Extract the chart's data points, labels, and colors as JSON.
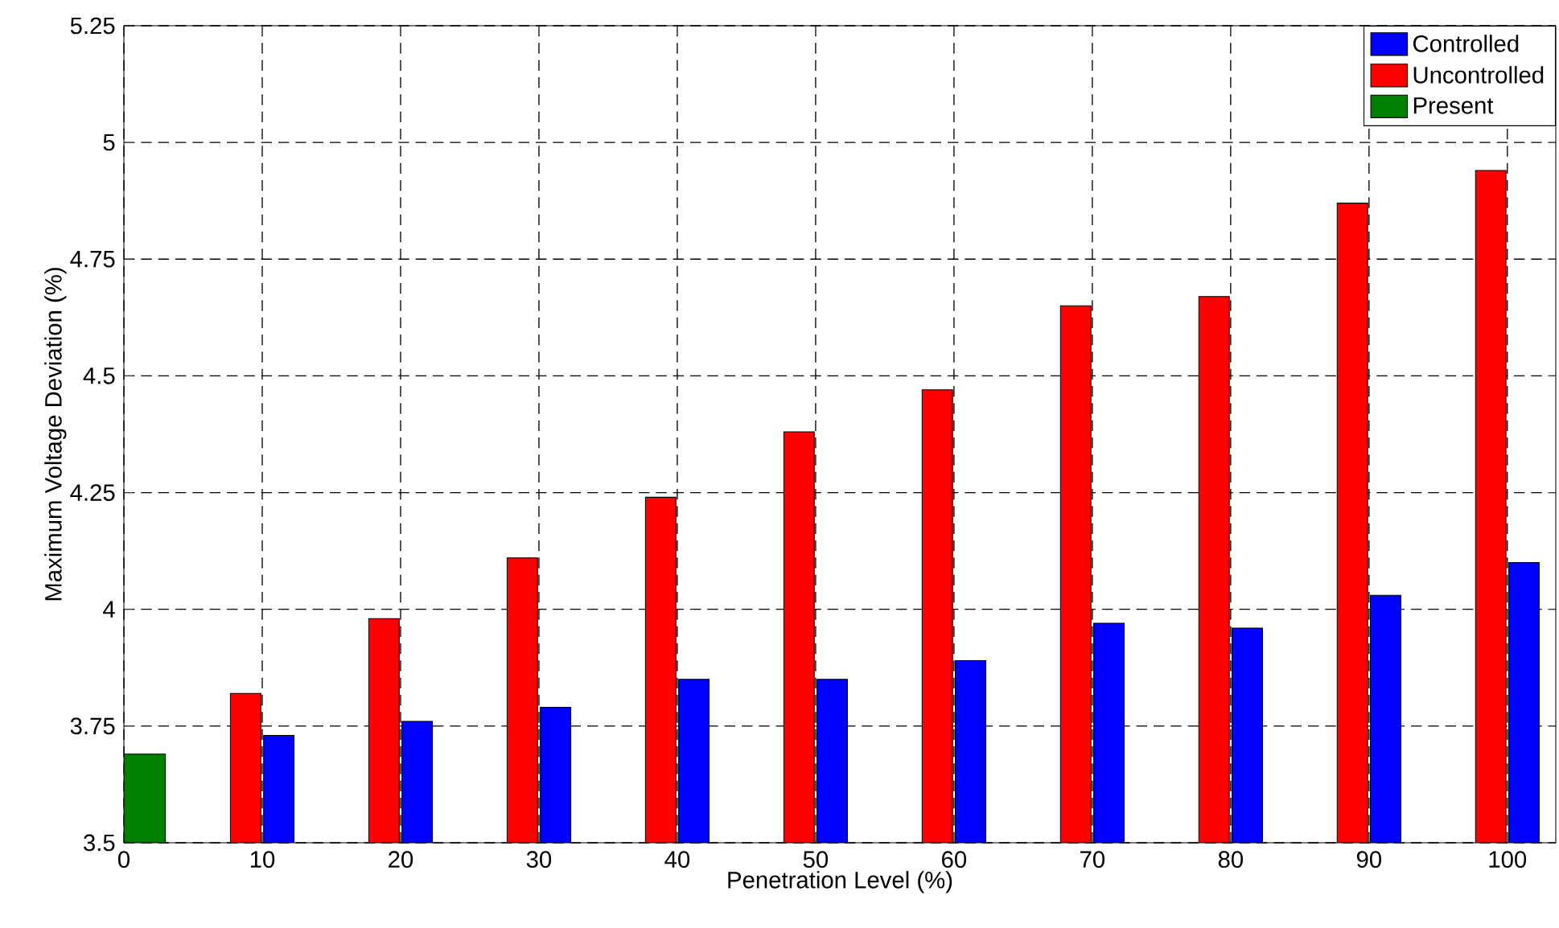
{
  "chart_data": {
    "type": "bar",
    "xlabel": "Penetration Level (%)",
    "ylabel": "Maximum Voltage Deviation (%)",
    "xlim": [
      0,
      103.5
    ],
    "xticks": [
      0,
      10,
      20,
      30,
      40,
      50,
      60,
      70,
      80,
      90,
      100
    ],
    "ylim": [
      3.5,
      5.25
    ],
    "yticks": [
      3.5,
      3.75,
      4,
      4.25,
      4.5,
      4.75,
      5,
      5.25
    ],
    "grid": true,
    "legend": "top right",
    "series": [
      {
        "name": "Controlled",
        "color": "#0000ff",
        "x": [
          10,
          20,
          30,
          40,
          50,
          60,
          70,
          80,
          90,
          100
        ],
        "values": [
          3.73,
          3.76,
          3.79,
          3.85,
          3.85,
          3.89,
          3.97,
          3.96,
          4.03,
          4.1
        ]
      },
      {
        "name": "Uncontrolled",
        "color": "#ff0000",
        "x": [
          10,
          20,
          30,
          40,
          50,
          60,
          70,
          80,
          90,
          100
        ],
        "values": [
          3.82,
          3.98,
          4.11,
          4.24,
          4.38,
          4.47,
          4.65,
          4.67,
          4.87,
          4.94
        ]
      },
      {
        "name": "Present",
        "color": "#008000",
        "x": [
          0
        ],
        "values": [
          3.69
        ]
      }
    ]
  }
}
